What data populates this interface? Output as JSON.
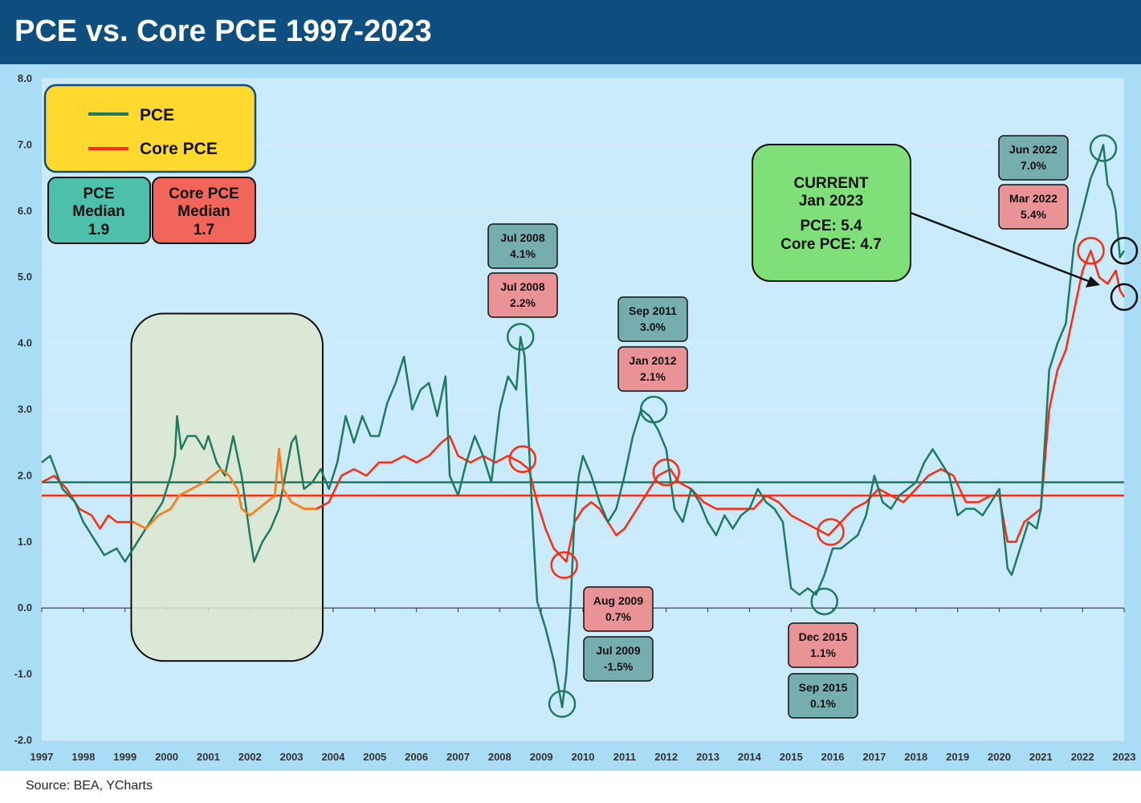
{
  "header": {
    "title": "PCE vs. Core PCE 1997-2023"
  },
  "footer": {
    "source": "Source:  BEA, YCharts"
  },
  "colors": {
    "pce": "#1e7a62",
    "core": "#ff2a10",
    "core_early": "#f58220",
    "plot_bg": "#c9ebfb",
    "frame_bg": "#a9dcf5",
    "legend_bg": "#ffd92e",
    "current_bg": "#7fe07a",
    "teal_box": "#76aeb0",
    "red_box": "#e99397",
    "shade_bg": "#dfe7cf"
  },
  "legend": {
    "pce_label": "PCE",
    "core_label": "Core PCE"
  },
  "median_boxes": {
    "pce": {
      "line1": "PCE",
      "line2": "Median",
      "value": "1.9"
    },
    "core": {
      "line1": "Core PCE",
      "line2": "Median",
      "value": "1.7"
    }
  },
  "current_box": {
    "line1": "CURRENT",
    "line2": "Jan 2023",
    "line3": "PCE:  5.4",
    "line4": "Core PCE: 4.7"
  },
  "callouts": [
    {
      "date": "Jul 2008",
      "value": "4.1%",
      "kind": "pce"
    },
    {
      "date": "Jul 2008",
      "value": "2.2%",
      "kind": "core"
    },
    {
      "date": "Sep 2011",
      "value": "3.0%",
      "kind": "pce"
    },
    {
      "date": "Jan 2012",
      "value": "2.1%",
      "kind": "core"
    },
    {
      "date": "Aug 2009",
      "value": "0.7%",
      "kind": "core"
    },
    {
      "date": "Jul 2009",
      "value": "-1.5%",
      "kind": "pce"
    },
    {
      "date": "Dec 2015",
      "value": "1.1%",
      "kind": "core"
    },
    {
      "date": "Sep 2015",
      "value": "0.1%",
      "kind": "pce"
    },
    {
      "date": "Jun 2022",
      "value": "7.0%",
      "kind": "pce"
    },
    {
      "date": "Mar 2022",
      "value": "5.4%",
      "kind": "core"
    }
  ],
  "chart_data": {
    "type": "line",
    "title": "PCE vs. Core PCE 1997-2023",
    "ylim": [
      -2.0,
      8.0
    ],
    "xlim": [
      1997,
      2023
    ],
    "y_ticks": [
      "8.0",
      "7.0",
      "6.0",
      "5.0",
      "4.0",
      "3.0",
      "2.0",
      "1.0",
      "0.0",
      "-1.0",
      "-2.0"
    ],
    "x_ticks": [
      "1997",
      "1998",
      "1999",
      "2000",
      "2001",
      "2002",
      "2003",
      "2004",
      "2005",
      "2006",
      "2007",
      "2008",
      "2009",
      "2010",
      "2011",
      "2012",
      "2013",
      "2014",
      "2015",
      "2016",
      "2017",
      "2018",
      "2019",
      "2020",
      "2021",
      "2022",
      "2023"
    ],
    "grid": true,
    "legend_position": "top-left",
    "shaded_period": [
      1999.15,
      2003.75
    ],
    "median_lines": {
      "PCE": 1.9,
      "Core PCE": 1.7
    },
    "series": [
      {
        "name": "PCE",
        "points": [
          [
            1997.0,
            2.2
          ],
          [
            1997.2,
            2.3
          ],
          [
            1997.5,
            1.8
          ],
          [
            1997.8,
            1.6
          ],
          [
            1998.0,
            1.3
          ],
          [
            1998.3,
            1.0
          ],
          [
            1998.5,
            0.8
          ],
          [
            1998.8,
            0.9
          ],
          [
            1999.0,
            0.7
          ],
          [
            1999.3,
            1.0
          ],
          [
            1999.6,
            1.3
          ],
          [
            1999.9,
            1.6
          ],
          [
            2000.1,
            2.0
          ],
          [
            2000.2,
            2.3
          ],
          [
            2000.25,
            2.9
          ],
          [
            2000.35,
            2.4
          ],
          [
            2000.5,
            2.6
          ],
          [
            2000.7,
            2.6
          ],
          [
            2000.9,
            2.4
          ],
          [
            2001.0,
            2.6
          ],
          [
            2001.2,
            2.2
          ],
          [
            2001.4,
            2.0
          ],
          [
            2001.6,
            2.6
          ],
          [
            2001.8,
            2.0
          ],
          [
            2002.0,
            1.1
          ],
          [
            2002.1,
            0.7
          ],
          [
            2002.3,
            1.0
          ],
          [
            2002.5,
            1.2
          ],
          [
            2002.7,
            1.5
          ],
          [
            2002.85,
            2.0
          ],
          [
            2003.0,
            2.5
          ],
          [
            2003.1,
            2.6
          ],
          [
            2003.3,
            1.8
          ],
          [
            2003.5,
            1.9
          ],
          [
            2003.7,
            2.1
          ],
          [
            2003.9,
            1.8
          ],
          [
            2004.1,
            2.2
          ],
          [
            2004.3,
            2.9
          ],
          [
            2004.5,
            2.5
          ],
          [
            2004.7,
            2.9
          ],
          [
            2004.9,
            2.6
          ],
          [
            2005.1,
            2.6
          ],
          [
            2005.3,
            3.1
          ],
          [
            2005.5,
            3.4
          ],
          [
            2005.7,
            3.8
          ],
          [
            2005.9,
            3.0
          ],
          [
            2006.1,
            3.3
          ],
          [
            2006.3,
            3.4
          ],
          [
            2006.5,
            2.9
          ],
          [
            2006.7,
            3.5
          ],
          [
            2006.8,
            2.0
          ],
          [
            2007.0,
            1.7
          ],
          [
            2007.2,
            2.2
          ],
          [
            2007.4,
            2.6
          ],
          [
            2007.6,
            2.3
          ],
          [
            2007.8,
            1.9
          ],
          [
            2008.0,
            3.0
          ],
          [
            2008.2,
            3.5
          ],
          [
            2008.4,
            3.3
          ],
          [
            2008.5,
            4.1
          ],
          [
            2008.6,
            3.8
          ],
          [
            2008.7,
            2.5
          ],
          [
            2008.8,
            1.2
          ],
          [
            2008.9,
            0.1
          ],
          [
            2009.1,
            -0.3
          ],
          [
            2009.3,
            -0.8
          ],
          [
            2009.5,
            -1.5
          ],
          [
            2009.6,
            -1.0
          ],
          [
            2009.7,
            0.0
          ],
          [
            2009.8,
            1.4
          ],
          [
            2009.9,
            2.0
          ],
          [
            2010.0,
            2.3
          ],
          [
            2010.2,
            2.0
          ],
          [
            2010.4,
            1.6
          ],
          [
            2010.6,
            1.3
          ],
          [
            2010.8,
            1.5
          ],
          [
            2011.0,
            2.0
          ],
          [
            2011.2,
            2.6
          ],
          [
            2011.4,
            3.0
          ],
          [
            2011.6,
            2.9
          ],
          [
            2011.8,
            2.7
          ],
          [
            2012.0,
            2.4
          ],
          [
            2012.2,
            1.5
          ],
          [
            2012.4,
            1.3
          ],
          [
            2012.6,
            1.8
          ],
          [
            2012.8,
            1.6
          ],
          [
            2013.0,
            1.3
          ],
          [
            2013.2,
            1.1
          ],
          [
            2013.4,
            1.4
          ],
          [
            2013.6,
            1.2
          ],
          [
            2013.8,
            1.4
          ],
          [
            2014.0,
            1.5
          ],
          [
            2014.2,
            1.8
          ],
          [
            2014.4,
            1.6
          ],
          [
            2014.6,
            1.5
          ],
          [
            2014.8,
            1.3
          ],
          [
            2015.0,
            0.3
          ],
          [
            2015.2,
            0.2
          ],
          [
            2015.4,
            0.3
          ],
          [
            2015.6,
            0.2
          ],
          [
            2015.8,
            0.5
          ],
          [
            2016.0,
            0.9
          ],
          [
            2016.2,
            0.9
          ],
          [
            2016.4,
            1.0
          ],
          [
            2016.6,
            1.1
          ],
          [
            2016.8,
            1.4
          ],
          [
            2017.0,
            2.0
          ],
          [
            2017.2,
            1.6
          ],
          [
            2017.4,
            1.5
          ],
          [
            2017.6,
            1.7
          ],
          [
            2017.8,
            1.8
          ],
          [
            2018.0,
            1.9
          ],
          [
            2018.2,
            2.2
          ],
          [
            2018.4,
            2.4
          ],
          [
            2018.6,
            2.2
          ],
          [
            2018.8,
            2.0
          ],
          [
            2019.0,
            1.4
          ],
          [
            2019.2,
            1.5
          ],
          [
            2019.4,
            1.5
          ],
          [
            2019.6,
            1.4
          ],
          [
            2019.8,
            1.6
          ],
          [
            2020.0,
            1.8
          ],
          [
            2020.2,
            0.6
          ],
          [
            2020.3,
            0.5
          ],
          [
            2020.5,
            0.9
          ],
          [
            2020.7,
            1.3
          ],
          [
            2020.9,
            1.2
          ],
          [
            2021.0,
            1.5
          ],
          [
            2021.2,
            3.6
          ],
          [
            2021.4,
            4.0
          ],
          [
            2021.6,
            4.3
          ],
          [
            2021.8,
            5.5
          ],
          [
            2022.0,
            6.0
          ],
          [
            2022.2,
            6.5
          ],
          [
            2022.4,
            6.8
          ],
          [
            2022.5,
            7.0
          ],
          [
            2022.6,
            6.4
          ],
          [
            2022.7,
            6.3
          ],
          [
            2022.8,
            6.0
          ],
          [
            2022.9,
            5.3
          ],
          [
            2023.0,
            5.4
          ]
        ]
      },
      {
        "name": "Core PCE",
        "points": [
          [
            1997.0,
            1.9
          ],
          [
            1997.3,
            2.0
          ],
          [
            1997.6,
            1.8
          ],
          [
            1997.9,
            1.5
          ],
          [
            1998.2,
            1.4
          ],
          [
            1998.4,
            1.2
          ],
          [
            1998.6,
            1.4
          ],
          [
            1998.8,
            1.3
          ],
          [
            1999.0,
            1.3
          ],
          [
            1999.2,
            1.3
          ],
          [
            1999.5,
            1.2
          ],
          [
            1999.8,
            1.4
          ],
          [
            2000.1,
            1.5
          ],
          [
            2000.3,
            1.7
          ],
          [
            2000.6,
            1.8
          ],
          [
            2000.9,
            1.9
          ],
          [
            2001.1,
            2.0
          ],
          [
            2001.3,
            2.1
          ],
          [
            2001.5,
            2.0
          ],
          [
            2001.7,
            1.8
          ],
          [
            2001.8,
            1.5
          ],
          [
            2002.0,
            1.4
          ],
          [
            2002.2,
            1.5
          ],
          [
            2002.4,
            1.6
          ],
          [
            2002.6,
            1.7
          ],
          [
            2002.7,
            2.4
          ],
          [
            2002.8,
            1.8
          ],
          [
            2003.0,
            1.6
          ],
          [
            2003.3,
            1.5
          ],
          [
            2003.6,
            1.5
          ],
          [
            2003.9,
            1.6
          ],
          [
            2004.2,
            2.0
          ],
          [
            2004.5,
            2.1
          ],
          [
            2004.8,
            2.0
          ],
          [
            2005.1,
            2.2
          ],
          [
            2005.4,
            2.2
          ],
          [
            2005.7,
            2.3
          ],
          [
            2006.0,
            2.2
          ],
          [
            2006.3,
            2.3
          ],
          [
            2006.6,
            2.5
          ],
          [
            2006.8,
            2.6
          ],
          [
            2007.0,
            2.3
          ],
          [
            2007.3,
            2.2
          ],
          [
            2007.6,
            2.3
          ],
          [
            2007.9,
            2.2
          ],
          [
            2008.2,
            2.3
          ],
          [
            2008.5,
            2.2
          ],
          [
            2008.7,
            2.1
          ],
          [
            2008.9,
            1.6
          ],
          [
            2009.1,
            1.2
          ],
          [
            2009.3,
            0.9
          ],
          [
            2009.6,
            0.7
          ],
          [
            2009.8,
            1.3
          ],
          [
            2010.0,
            1.5
          ],
          [
            2010.2,
            1.6
          ],
          [
            2010.4,
            1.5
          ],
          [
            2010.6,
            1.3
          ],
          [
            2010.8,
            1.1
          ],
          [
            2011.0,
            1.2
          ],
          [
            2011.2,
            1.4
          ],
          [
            2011.5,
            1.7
          ],
          [
            2011.8,
            2.0
          ],
          [
            2012.1,
            2.1
          ],
          [
            2012.3,
            1.9
          ],
          [
            2012.6,
            1.8
          ],
          [
            2012.9,
            1.6
          ],
          [
            2013.2,
            1.5
          ],
          [
            2013.5,
            1.5
          ],
          [
            2013.8,
            1.5
          ],
          [
            2014.1,
            1.5
          ],
          [
            2014.4,
            1.7
          ],
          [
            2014.7,
            1.6
          ],
          [
            2015.0,
            1.4
          ],
          [
            2015.3,
            1.3
          ],
          [
            2015.6,
            1.2
          ],
          [
            2015.9,
            1.1
          ],
          [
            2016.2,
            1.3
          ],
          [
            2016.5,
            1.5
          ],
          [
            2016.8,
            1.6
          ],
          [
            2017.1,
            1.8
          ],
          [
            2017.4,
            1.7
          ],
          [
            2017.7,
            1.6
          ],
          [
            2018.0,
            1.8
          ],
          [
            2018.3,
            2.0
          ],
          [
            2018.6,
            2.1
          ],
          [
            2018.9,
            2.0
          ],
          [
            2019.2,
            1.6
          ],
          [
            2019.5,
            1.6
          ],
          [
            2019.8,
            1.7
          ],
          [
            2020.0,
            1.7
          ],
          [
            2020.2,
            1.0
          ],
          [
            2020.4,
            1.0
          ],
          [
            2020.6,
            1.3
          ],
          [
            2020.8,
            1.4
          ],
          [
            2021.0,
            1.5
          ],
          [
            2021.2,
            3.0
          ],
          [
            2021.4,
            3.6
          ],
          [
            2021.6,
            3.9
          ],
          [
            2021.8,
            4.5
          ],
          [
            2022.0,
            5.1
          ],
          [
            2022.2,
            5.4
          ],
          [
            2022.4,
            5.0
          ],
          [
            2022.6,
            4.9
          ],
          [
            2022.8,
            5.1
          ],
          [
            2022.9,
            4.8
          ],
          [
            2023.0,
            4.7
          ]
        ]
      }
    ]
  }
}
